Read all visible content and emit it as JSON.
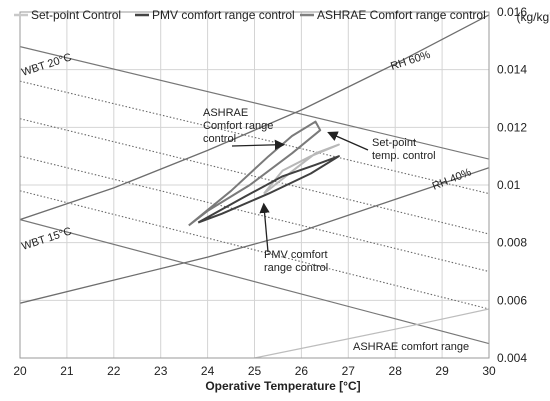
{
  "chart_data": {
    "type": "line",
    "xlabel": "Operative Temperature [°C]",
    "ylabel_unit": "(kg/kg')",
    "xlim": [
      20,
      30
    ],
    "ylim": [
      0.004,
      0.016
    ],
    "x_ticks": [
      "20",
      "21",
      "22",
      "23",
      "24",
      "25",
      "26",
      "27",
      "28",
      "29",
      "30"
    ],
    "y_ticks": [
      "0.004",
      "0.006",
      "0.008",
      "0.01",
      "0.012",
      "0.014",
      "0.016"
    ],
    "grid": true,
    "legend_position": "top",
    "legend": [
      {
        "label": "Set-point Control",
        "color": "#c9c9c9"
      },
      {
        "label": "PMV comfort range control",
        "color": "#444444"
      },
      {
        "label": "ASHRAE Comfort range control",
        "color": "#808080"
      }
    ],
    "rh_lines": [
      {
        "label": "RH 60%",
        "points": [
          [
            20,
            0.0088
          ],
          [
            22,
            0.0099
          ],
          [
            24,
            0.0112
          ],
          [
            26,
            0.0126
          ],
          [
            28,
            0.0142
          ],
          [
            30,
            0.0159
          ]
        ]
      },
      {
        "label": "RH 40%",
        "points": [
          [
            20,
            0.0059
          ],
          [
            22,
            0.0067
          ],
          [
            24,
            0.0075
          ],
          [
            26,
            0.0084
          ],
          [
            28,
            0.0095
          ],
          [
            30,
            0.0106
          ]
        ]
      }
    ],
    "wbt_lines": [
      {
        "label": "WBT 20°C",
        "points": [
          [
            20,
            0.0148
          ],
          [
            30,
            0.0109
          ]
        ]
      },
      {
        "label": "WBT 15°C",
        "points": [
          [
            20,
            0.0088
          ],
          [
            30,
            0.0045
          ]
        ]
      }
    ],
    "wbt_dotted": [
      [
        [
          20,
          0.0136
        ],
        [
          30,
          0.0097
        ]
      ],
      [
        [
          20,
          0.0123
        ],
        [
          30,
          0.0083
        ]
      ],
      [
        [
          20,
          0.011
        ],
        [
          30,
          0.007
        ]
      ],
      [
        [
          20,
          0.0098
        ],
        [
          30,
          0.0057
        ]
      ]
    ],
    "ashrae_comfort_range": {
      "label": "ASHRAE comfort range",
      "points": [
        [
          25,
          0.004
        ],
        [
          26.5,
          0.0045
        ],
        [
          28,
          0.005
        ],
        [
          30,
          0.0057
        ]
      ]
    },
    "series": [
      {
        "name": "Set-point Control",
        "color": "#b8b8b8",
        "points": [
          [
            25.2,
            0.0097
          ],
          [
            25.9,
            0.0106
          ],
          [
            26.3,
            0.0111
          ],
          [
            26.8,
            0.0114
          ],
          [
            26.2,
            0.011
          ],
          [
            25.6,
            0.0105
          ],
          [
            25.2,
            0.0097
          ]
        ]
      },
      {
        "name": "PMV comfort range control",
        "color": "#404040",
        "points": [
          [
            23.8,
            0.0087
          ],
          [
            24.8,
            0.0096
          ],
          [
            25.6,
            0.0103
          ],
          [
            26.3,
            0.0107
          ],
          [
            26.8,
            0.011
          ],
          [
            26.2,
            0.0104
          ],
          [
            25.3,
            0.0097
          ],
          [
            24.3,
            0.009
          ],
          [
            23.8,
            0.0087
          ]
        ]
      },
      {
        "name": "ASHRAE Comfort range control",
        "color": "#7a7a7a",
        "points": [
          [
            23.6,
            0.0086
          ],
          [
            24.5,
            0.0098
          ],
          [
            25.3,
            0.011
          ],
          [
            25.8,
            0.0117
          ],
          [
            26.3,
            0.0122
          ],
          [
            26.4,
            0.0119
          ],
          [
            25.8,
            0.0111
          ],
          [
            24.9,
            0.01
          ],
          [
            24.0,
            0.0091
          ],
          [
            23.6,
            0.0086
          ]
        ]
      }
    ],
    "annotations": [
      {
        "lines": [
          "ASHRAE",
          "Comfort  range",
          "control"
        ],
        "target": [
          25.6,
          0.0114
        ]
      },
      {
        "lines": [
          "Set-point",
          "temp. control"
        ],
        "target": [
          26.6,
          0.0118
        ]
      },
      {
        "lines": [
          "PMV comfort",
          "range control"
        ],
        "target": [
          25.2,
          0.0093
        ]
      }
    ]
  }
}
